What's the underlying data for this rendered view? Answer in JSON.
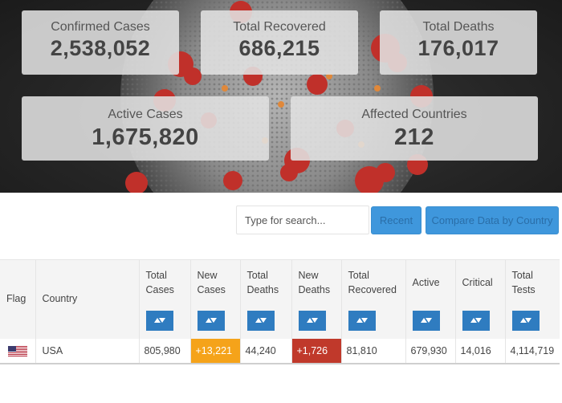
{
  "stats": {
    "confirmed": {
      "label": "Confirmed Cases",
      "value": "2,538,052"
    },
    "recovered": {
      "label": "Total Recovered",
      "value": "686,215"
    },
    "deaths": {
      "label": "Total Deaths",
      "value": "176,017"
    },
    "active": {
      "label": "Active Cases",
      "value": "1,675,820"
    },
    "countries": {
      "label": "Affected Countries",
      "value": "212"
    }
  },
  "search": {
    "placeholder": "Type for search...",
    "value": ""
  },
  "buttons": {
    "recent": "Recent",
    "compare": "Compare Data by Country"
  },
  "table": {
    "headers": {
      "flag": "Flag",
      "country": "Country",
      "total_cases": [
        "Total",
        "Cases"
      ],
      "new_cases": [
        "New",
        "Cases"
      ],
      "total_deaths": [
        "Total",
        "Deaths"
      ],
      "new_deaths": [
        "New",
        "Deaths"
      ],
      "total_recovered": [
        "Total",
        "Recovered"
      ],
      "active": "Active",
      "critical": "Critical",
      "total_tests": [
        "Total",
        "Tests"
      ]
    },
    "rows": [
      {
        "flag_icon": "us-flag-icon",
        "country": "USA",
        "total_cases": "805,980",
        "new_cases": "+13,221",
        "total_deaths": "44,240",
        "new_deaths": "+1,726",
        "total_recovered": "81,810",
        "active": "679,930",
        "critical": "14,016",
        "total_tests": "4,114,719"
      }
    ]
  },
  "colors": {
    "new_cases": "#f5a31a",
    "new_deaths": "#c0392b",
    "sort_button": "#2f7cc0",
    "primary_button": "#3f97dc"
  }
}
